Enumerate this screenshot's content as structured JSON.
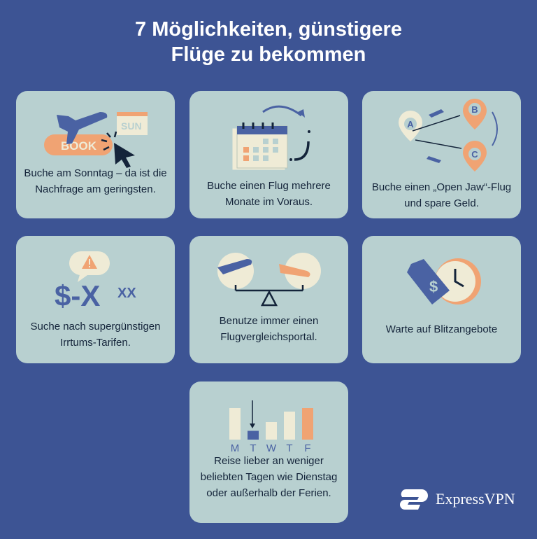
{
  "title": {
    "line1": "7 Möglichkeiten, günstigere",
    "line2": "Flüge zu bekommen"
  },
  "colors": {
    "background": "#3d5494",
    "card": "#b8d0d0",
    "accent": "#f0a373",
    "cream": "#efebd6",
    "dark": "#14243a"
  },
  "tips": [
    {
      "text": "Buche am Sonntag – da ist die Nachfrage am geringsten.",
      "icon": "plane-book-calendar-icon",
      "book_label": "BOOK",
      "day_label": "SUN"
    },
    {
      "text": "Buche einen Flug mehrere Monate im Voraus.",
      "icon": "calendar-arrow-icon"
    },
    {
      "text": "Buche einen „Open Jaw“-Flug und spare Geld.",
      "icon": "route-pins-icon",
      "pins": [
        "A",
        "B",
        "C"
      ]
    },
    {
      "text": "Suche nach supergünstigen Irrtums-Tarifen.",
      "icon": "price-error-icon",
      "price_label": "$-X",
      "price_sup": "XX"
    },
    {
      "text": "Benutze immer einen Flugvergleichsportal.",
      "icon": "scale-planes-icon"
    },
    {
      "text": "Warte auf Blitzangebote",
      "icon": "price-tag-clock-icon"
    },
    {
      "text": "Reise lieber an weniger beliebten Tagen wie Dienstag oder außerhalb der Ferien.",
      "icon": "weekday-bars-icon",
      "days": [
        "M",
        "T",
        "W",
        "T",
        "F"
      ],
      "levels": [
        0.9,
        0.25,
        0.5,
        0.8,
        0.9
      ]
    }
  ],
  "brand": {
    "name": "ExpressVPN"
  }
}
